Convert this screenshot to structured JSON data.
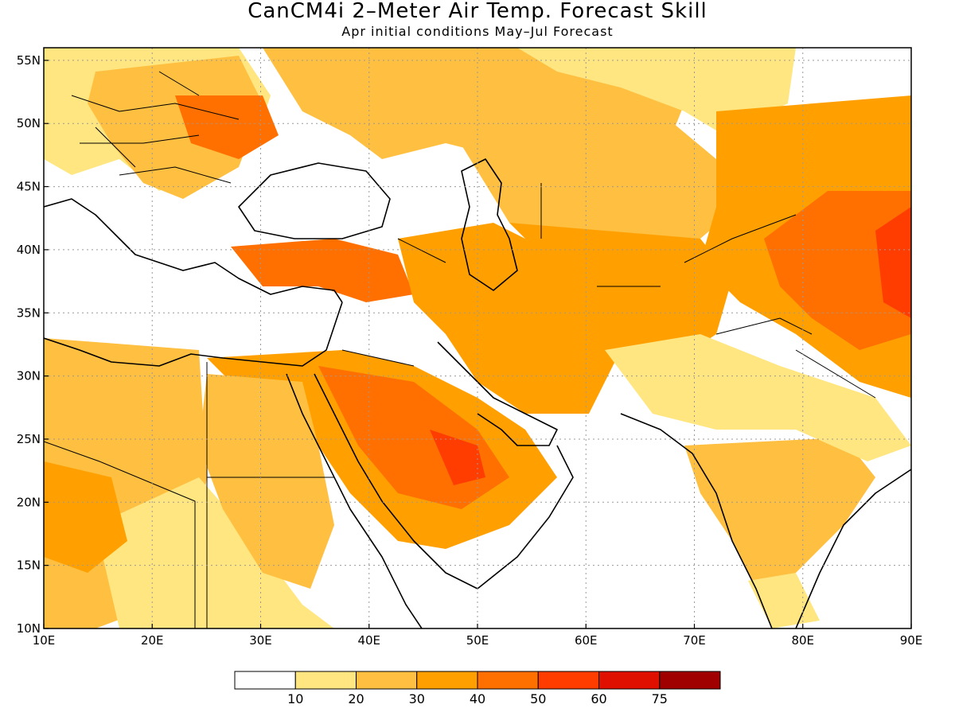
{
  "title": "CanCM4i 2–Meter Air Temp. Forecast Skill",
  "subtitle": "Apr initial conditions   May–Jul Forecast",
  "map": {
    "projection": "lat-lon",
    "lon_range": [
      10,
      90
    ],
    "lat_range": [
      10,
      56
    ],
    "x_ticks": [
      "10E",
      "20E",
      "30E",
      "40E",
      "50E",
      "60E",
      "70E",
      "80E",
      "90E"
    ],
    "x_tick_values": [
      10,
      20,
      30,
      40,
      50,
      60,
      70,
      80,
      90
    ],
    "y_ticks": [
      "10N",
      "15N",
      "20N",
      "25N",
      "30N",
      "35N",
      "40N",
      "45N",
      "50N",
      "55N"
    ],
    "y_tick_values": [
      10,
      15,
      20,
      25,
      30,
      35,
      40,
      45,
      50,
      55
    ],
    "grid": "dotted"
  },
  "colorbar": {
    "levels": [
      "10",
      "20",
      "30",
      "40",
      "50",
      "60",
      "75"
    ],
    "colors": [
      "#ffffff",
      "#ffe680",
      "#ffbf40",
      "#ffa000",
      "#ff7000",
      "#ff3d00",
      "#e01000",
      "#a00000"
    ]
  }
}
